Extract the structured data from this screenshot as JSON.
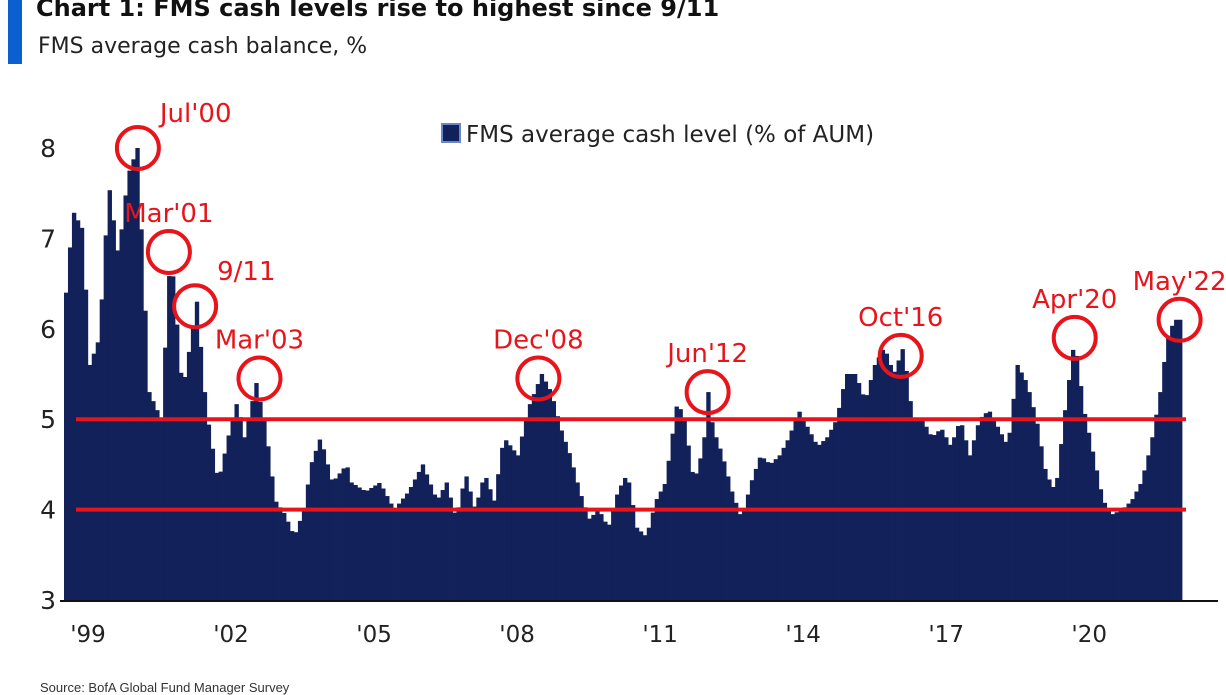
{
  "header": {
    "title": "Chart 1: FMS cash levels rise to highest since 9/11",
    "subtitle": "FMS average cash balance, %"
  },
  "footer": {
    "source": "Source: BofA Global Fund Manager Survey"
  },
  "colors": {
    "bar": "#13215a",
    "accent": "#0b5fcf",
    "highlight": "#e8141b",
    "axis": "#111111"
  },
  "chart_data": {
    "type": "bar",
    "legend": {
      "label": "FMS average cash level (% of AUM)",
      "position": "top-center"
    },
    "x_ticks": [
      "'99",
      "'02",
      "'05",
      "'08",
      "'11",
      "'14",
      "'17",
      "'20"
    ],
    "x_tick_years": [
      1999,
      2002,
      2005,
      2008,
      2011,
      2014,
      2017,
      2020
    ],
    "ylim": [
      3,
      8
    ],
    "y_ticks": [
      3,
      4,
      5,
      6,
      7,
      8
    ],
    "grid": false,
    "reference_lines": [
      4.0,
      5.0
    ],
    "anchors": [
      [
        1999.0,
        6.4
      ],
      [
        1999.15,
        7.3
      ],
      [
        1999.35,
        7.1
      ],
      [
        1999.5,
        5.6
      ],
      [
        1999.7,
        5.9
      ],
      [
        1999.9,
        7.6
      ],
      [
        2000.1,
        6.8
      ],
      [
        2000.3,
        7.7
      ],
      [
        2000.5,
        8.0
      ],
      [
        2000.75,
        5.3
      ],
      [
        2001.0,
        5.0
      ],
      [
        2001.2,
        6.9
      ],
      [
        2001.45,
        5.3
      ],
      [
        2001.6,
        5.8
      ],
      [
        2001.75,
        6.3
      ],
      [
        2001.95,
        5.1
      ],
      [
        2002.2,
        4.3
      ],
      [
        2002.45,
        4.9
      ],
      [
        2002.6,
        5.2
      ],
      [
        2002.75,
        4.8
      ],
      [
        2003.0,
        5.4
      ],
      [
        2003.2,
        4.9
      ],
      [
        2003.4,
        4.1
      ],
      [
        2003.6,
        3.95
      ],
      [
        2003.8,
        3.7
      ],
      [
        2004.0,
        4.0
      ],
      [
        2004.15,
        4.5
      ],
      [
        2004.35,
        4.8
      ],
      [
        2004.6,
        4.3
      ],
      [
        2004.9,
        4.5
      ],
      [
        2005.0,
        4.3
      ],
      [
        2005.3,
        4.2
      ],
      [
        2005.6,
        4.3
      ],
      [
        2005.9,
        4.0
      ],
      [
        2006.2,
        4.2
      ],
      [
        2006.5,
        4.5
      ],
      [
        2006.8,
        4.1
      ],
      [
        2007.0,
        4.3
      ],
      [
        2007.2,
        3.9
      ],
      [
        2007.4,
        4.4
      ],
      [
        2007.6,
        4.0
      ],
      [
        2007.8,
        4.4
      ],
      [
        2008.0,
        4.1
      ],
      [
        2008.2,
        4.8
      ],
      [
        2008.5,
        4.6
      ],
      [
        2008.7,
        5.1
      ],
      [
        2008.85,
        5.3
      ],
      [
        2009.0,
        5.5
      ],
      [
        2009.2,
        5.3
      ],
      [
        2009.4,
        4.9
      ],
      [
        2009.6,
        4.6
      ],
      [
        2009.8,
        4.2
      ],
      [
        2010.0,
        3.9
      ],
      [
        2010.2,
        4.0
      ],
      [
        2010.4,
        3.8
      ],
      [
        2010.6,
        4.2
      ],
      [
        2010.8,
        4.4
      ],
      [
        2011.0,
        3.8
      ],
      [
        2011.2,
        3.7
      ],
      [
        2011.4,
        4.1
      ],
      [
        2011.6,
        4.3
      ],
      [
        2011.85,
        5.2
      ],
      [
        2012.0,
        5.0
      ],
      [
        2012.2,
        4.3
      ],
      [
        2012.4,
        4.7
      ],
      [
        2012.5,
        5.3
      ],
      [
        2012.6,
        4.9
      ],
      [
        2012.8,
        4.6
      ],
      [
        2013.0,
        4.2
      ],
      [
        2013.2,
        3.9
      ],
      [
        2013.4,
        4.3
      ],
      [
        2013.6,
        4.6
      ],
      [
        2013.8,
        4.5
      ],
      [
        2014.0,
        4.6
      ],
      [
        2014.2,
        4.8
      ],
      [
        2014.4,
        5.1
      ],
      [
        2014.6,
        4.9
      ],
      [
        2014.8,
        4.7
      ],
      [
        2015.0,
        4.8
      ],
      [
        2015.2,
        5.0
      ],
      [
        2015.4,
        5.5
      ],
      [
        2015.6,
        5.5
      ],
      [
        2015.8,
        5.2
      ],
      [
        2016.0,
        5.6
      ],
      [
        2016.2,
        5.8
      ],
      [
        2016.4,
        5.5
      ],
      [
        2016.6,
        5.8
      ],
      [
        2016.8,
        5.0
      ],
      [
        2017.0,
        5.0
      ],
      [
        2017.2,
        4.8
      ],
      [
        2017.4,
        4.9
      ],
      [
        2017.6,
        4.7
      ],
      [
        2017.8,
        5.0
      ],
      [
        2018.0,
        4.6
      ],
      [
        2018.2,
        5.0
      ],
      [
        2018.4,
        5.1
      ],
      [
        2018.6,
        4.9
      ],
      [
        2018.8,
        4.7
      ],
      [
        2019.0,
        5.6
      ],
      [
        2019.2,
        5.4
      ],
      [
        2019.4,
        5.0
      ],
      [
        2019.6,
        4.4
      ],
      [
        2019.8,
        4.2
      ],
      [
        2020.0,
        5.1
      ],
      [
        2020.2,
        5.9
      ],
      [
        2020.4,
        5.1
      ],
      [
        2020.6,
        4.6
      ],
      [
        2020.8,
        4.1
      ],
      [
        2021.0,
        3.95
      ],
      [
        2021.2,
        4.0
      ],
      [
        2021.4,
        4.1
      ],
      [
        2021.6,
        4.3
      ],
      [
        2021.8,
        4.7
      ],
      [
        2022.0,
        5.3
      ],
      [
        2022.15,
        5.9
      ],
      [
        2022.3,
        6.1
      ],
      [
        2022.42,
        6.1
      ]
    ],
    "annotations": [
      {
        "label": "Jul'00",
        "x": 2000.55,
        "y": 8.0,
        "side": "right-top"
      },
      {
        "label": "Mar'01",
        "x": 2001.2,
        "y": 6.85,
        "side": "top"
      },
      {
        "label": "9/11",
        "x": 2001.75,
        "y": 6.25,
        "side": "right-top"
      },
      {
        "label": "Mar'03",
        "x": 2003.1,
        "y": 5.45,
        "side": "top"
      },
      {
        "label": "Dec'08",
        "x": 2008.95,
        "y": 5.45,
        "side": "top"
      },
      {
        "label": "Jun'12",
        "x": 2012.5,
        "y": 5.3,
        "side": "top"
      },
      {
        "label": "Oct'16",
        "x": 2016.55,
        "y": 5.7,
        "side": "top"
      },
      {
        "label": "Apr'20",
        "x": 2020.2,
        "y": 5.9,
        "side": "top"
      },
      {
        "label": "May'22",
        "x": 2022.4,
        "y": 6.1,
        "side": "top"
      }
    ]
  }
}
